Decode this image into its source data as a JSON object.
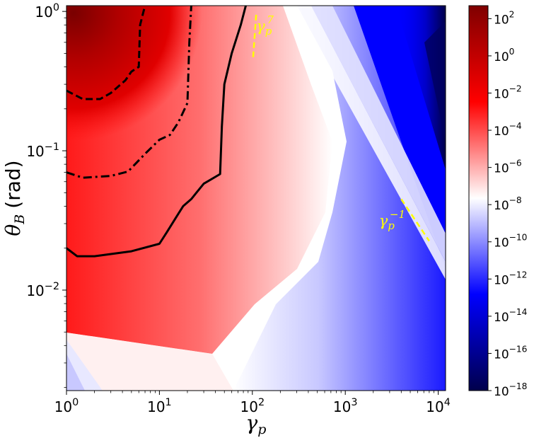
{
  "chart_data": {
    "type": "heatmap",
    "xlabel": "γ",
    "xlabel_sub": "p",
    "ylabel": "θ",
    "ylabel_sub": "B",
    "ylabel_unit": "(rad)",
    "x_scale": "log",
    "y_scale": "log",
    "xlim": [
      1,
      12000
    ],
    "ylim": [
      0.0019,
      1.1
    ],
    "x_ticks": [
      {
        "value": 1,
        "base": "10",
        "exp": "0"
      },
      {
        "value": 10,
        "base": "10",
        "exp": "1"
      },
      {
        "value": 100,
        "base": "10",
        "exp": "2"
      },
      {
        "value": 1000,
        "base": "10",
        "exp": "3"
      },
      {
        "value": 10000,
        "base": "10",
        "exp": "4"
      }
    ],
    "y_ticks": [
      {
        "value": 0.01,
        "base": "10",
        "exp": "−2"
      },
      {
        "value": 0.1,
        "base": "10",
        "exp": "−1"
      },
      {
        "value": 1,
        "base": "10",
        "exp": "0"
      }
    ],
    "colorbar": {
      "scale": "log",
      "colormap": "seismic",
      "range": [
        1e-18,
        500
      ],
      "colors": [
        "#00004c",
        "#0000ff",
        "#ffffff",
        "#ff0000",
        "#7f0000"
      ],
      "ticks": [
        {
          "value": 1e-18,
          "base": "10",
          "exp": "−18"
        },
        {
          "value": 1e-16,
          "base": "10",
          "exp": "−16"
        },
        {
          "value": 1e-14,
          "base": "10",
          "exp": "−14"
        },
        {
          "value": 1e-12,
          "base": "10",
          "exp": "−12"
        },
        {
          "value": 1e-10,
          "base": "10",
          "exp": "−10"
        },
        {
          "value": 1e-08,
          "base": "10",
          "exp": "−8"
        },
        {
          "value": 1e-06,
          "base": "10",
          "exp": "−6"
        },
        {
          "value": 0.0001,
          "base": "10",
          "exp": "−4"
        },
        {
          "value": 0.01,
          "base": "10",
          "exp": "−2"
        },
        {
          "value": 1,
          "base": "10",
          "exp": "0"
        },
        {
          "value": 100,
          "base": "10",
          "exp": "2"
        }
      ]
    },
    "contours": [
      {
        "style": "solid",
        "points": [
          [
            1,
            0.02
          ],
          [
            1.3,
            0.0175
          ],
          [
            2,
            0.0175
          ],
          [
            5,
            0.019
          ],
          [
            10,
            0.0215
          ],
          [
            12,
            0.026
          ],
          [
            15,
            0.033
          ],
          [
            18,
            0.04
          ],
          [
            22,
            0.045
          ],
          [
            25,
            0.05
          ],
          [
            30,
            0.058
          ],
          [
            45,
            0.068
          ],
          [
            47,
            0.15
          ],
          [
            50,
            0.3
          ],
          [
            60,
            0.5
          ],
          [
            75,
            0.8
          ],
          [
            85,
            1.1
          ]
        ]
      },
      {
        "style": "dashdot",
        "points": [
          [
            1,
            0.07
          ],
          [
            1.5,
            0.064
          ],
          [
            3,
            0.066
          ],
          [
            4.6,
            0.071
          ],
          [
            7,
            0.095
          ],
          [
            10,
            0.12
          ],
          [
            13,
            0.13
          ],
          [
            16,
            0.16
          ],
          [
            20,
            0.22
          ],
          [
            21,
            0.6
          ],
          [
            22,
            1.1
          ]
        ]
      },
      {
        "style": "dashed",
        "points": [
          [
            1,
            0.27
          ],
          [
            1.5,
            0.235
          ],
          [
            2.3,
            0.235
          ],
          [
            3,
            0.26
          ],
          [
            4.3,
            0.32
          ],
          [
            5,
            0.37
          ],
          [
            6,
            0.4
          ],
          [
            6.2,
            0.8
          ],
          [
            7,
            1.1
          ]
        ]
      }
    ],
    "reference_lines": [
      {
        "label": "γ",
        "label_sub": "p",
        "label_sup": "7",
        "points": [
          [
            102,
            0.47
          ],
          [
            110,
            0.95
          ]
        ],
        "label_at": [
          110,
          0.72
        ]
      },
      {
        "label": "γ",
        "label_sub": "p",
        "label_sup": "−1",
        "points": [
          [
            4000,
            0.045
          ],
          [
            8000,
            0.0225
          ]
        ],
        "label_at": [
          2300,
          0.029
        ]
      }
    ]
  }
}
